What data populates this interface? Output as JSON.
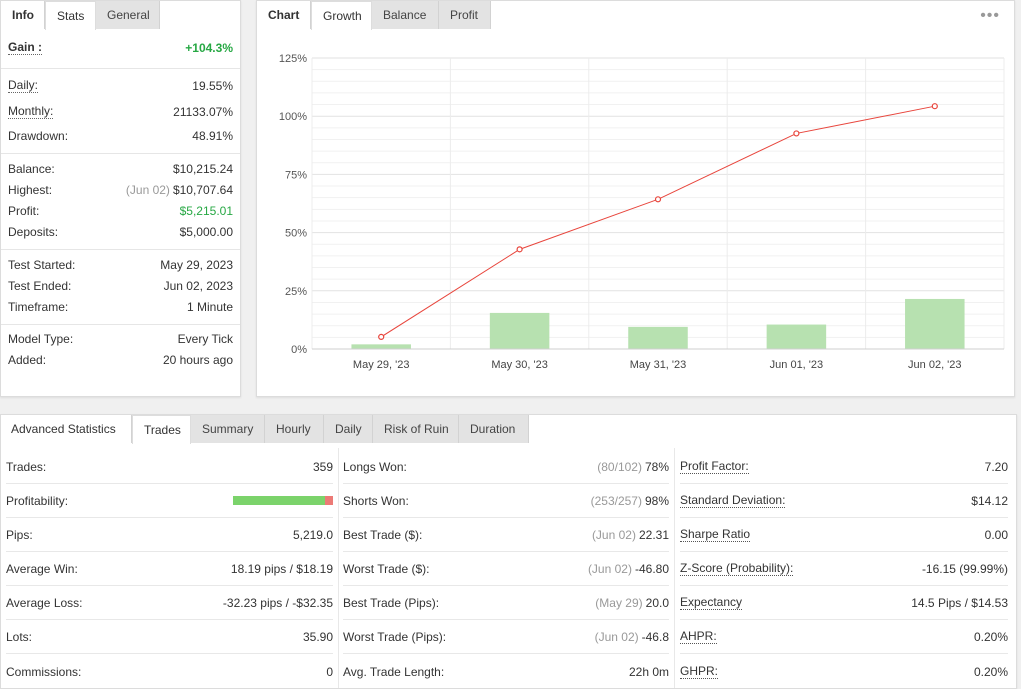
{
  "info": {
    "tabs": [
      "Info",
      "Stats",
      "General"
    ],
    "gain": {
      "label": "Gain :",
      "value": "+104.3%"
    },
    "daily": {
      "label": "Daily:",
      "value": "19.55%"
    },
    "monthly": {
      "label": "Monthly:",
      "value": "21133.07%"
    },
    "drawdown": {
      "label": "Drawdown:",
      "value": "48.91%"
    },
    "balance": {
      "label": "Balance:",
      "value": "$10,215.24"
    },
    "highest": {
      "label": "Highest:",
      "date": "(Jun 02)",
      "value": "$10,707.64"
    },
    "profit": {
      "label": "Profit:",
      "value": "$5,215.01"
    },
    "deposits": {
      "label": "Deposits:",
      "value": "$5,000.00"
    },
    "test_started": {
      "label": "Test Started:",
      "value": "May 29, 2023"
    },
    "test_ended": {
      "label": "Test Ended:",
      "value": "Jun 02, 2023"
    },
    "timeframe": {
      "label": "Timeframe:",
      "value": "1 Minute"
    },
    "model_type": {
      "label": "Model Type:",
      "value": "Every Tick"
    },
    "added": {
      "label": "Added:",
      "value": "20 hours ago"
    }
  },
  "chart_panel": {
    "tabs": [
      "Chart",
      "Growth",
      "Balance",
      "Profit"
    ],
    "menu_glyph": "•••"
  },
  "chart_data": {
    "type": "line",
    "categories": [
      "May 29, '23",
      "May 30, '23",
      "May 31, '23",
      "Jun 01, '23",
      "Jun 02, '23"
    ],
    "series": [
      {
        "values": [
          5.2,
          42.8,
          64.3,
          92.6,
          104.3
        ],
        "color": "#e8453c"
      },
      {
        "values": [
          2.0,
          15.5,
          9.5,
          10.5,
          21.5
        ],
        "color": "#b7e1b0"
      }
    ],
    "yticks": [
      "0%",
      "25%",
      "50%",
      "75%",
      "100%",
      "125%"
    ],
    "ylim": [
      0,
      125
    ],
    "grid": true
  },
  "adv": {
    "tabs": [
      "Advanced Statistics",
      "Trades",
      "Summary",
      "Hourly",
      "Daily",
      "Risk of Ruin",
      "Duration"
    ],
    "col1": [
      {
        "label": "Trades:",
        "value": "359"
      },
      {
        "label": "Profitability:",
        "value": ""
      },
      {
        "label": "Pips:",
        "value": "5,219.0"
      },
      {
        "label": "Average Win:",
        "value": "18.19 pips / $18.19"
      },
      {
        "label": "Average Loss:",
        "value": "-32.23 pips / -$32.35"
      },
      {
        "label": "Lots:",
        "value": "35.90"
      },
      {
        "label": "Commissions:",
        "value": "0"
      }
    ],
    "col2": [
      {
        "label": "Longs Won:",
        "muted": "(80/102)",
        "value": "78%"
      },
      {
        "label": "Shorts Won:",
        "muted": "(253/257)",
        "value": "98%"
      },
      {
        "label": "Best Trade ($):",
        "muted": "(Jun 02)",
        "value": "22.31"
      },
      {
        "label": "Worst Trade ($):",
        "muted": "(Jun 02)",
        "value": "-46.80"
      },
      {
        "label": "Best Trade (Pips):",
        "muted": "(May 29)",
        "value": "20.0"
      },
      {
        "label": "Worst Trade (Pips):",
        "muted": "(Jun 02)",
        "value": "-46.8"
      },
      {
        "label": "Avg. Trade Length:",
        "muted": "",
        "value": "22h 0m"
      }
    ],
    "col3": [
      {
        "label": "Profit Factor:",
        "value": "7.20"
      },
      {
        "label": "Standard Deviation:",
        "value": "$14.12"
      },
      {
        "label": "Sharpe Ratio",
        "value": "0.00"
      },
      {
        "label": "Z-Score (Probability):",
        "value": "-16.15 (99.99%)"
      },
      {
        "label": "Expectancy",
        "value": "14.5 Pips / $14.53"
      },
      {
        "label": "AHPR:",
        "value": "0.20%"
      },
      {
        "label": "GHPR:",
        "value": "0.20%"
      }
    ],
    "profitability": {
      "win_fraction": 0.92,
      "win_color": "#7bd36b",
      "loss_color": "#ec7a76"
    }
  }
}
